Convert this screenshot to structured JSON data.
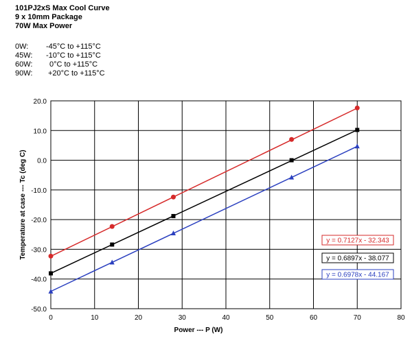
{
  "header": {
    "line1": "101PJ2xS Max Cool Curve",
    "line2": "9 x 10mm Package",
    "line3": "70W Max Power"
  },
  "ranges": [
    {
      "power": "0W:",
      "range": "-45°C to +115°C"
    },
    {
      "power": "45W:",
      "range": "-10°C to +115°C"
    },
    {
      "power": "60W:",
      "range": "0°C to +115°C"
    },
    {
      "power": "90W:",
      "range": "+20°C to +115°C"
    }
  ],
  "chart_data": {
    "type": "scatter",
    "xlabel": "Power --- P (W)",
    "ylabel": "Temperature at case --- Tc (deg C)",
    "xlim": [
      0,
      80
    ],
    "ylim": [
      -50,
      20
    ],
    "x_ticks": [
      "0",
      "10",
      "20",
      "30",
      "40",
      "50",
      "60",
      "70",
      "80"
    ],
    "y_ticks": [
      "20.0",
      "10.0",
      "0.0",
      "-10.0",
      "-20.0",
      "-30.0",
      "-40.0",
      "-50.0"
    ],
    "grid": true,
    "series": [
      {
        "color": "#d62a2a",
        "marker": "circle",
        "x": [
          0,
          14,
          28,
          55,
          70
        ],
        "y": [
          -32.3,
          -22.3,
          -12.4,
          7.0,
          17.6
        ],
        "trendline": {
          "slope": 0.7127,
          "intercept": -32.343,
          "label": "y = 0.7127x - 32.343"
        }
      },
      {
        "color": "#000000",
        "marker": "square",
        "x": [
          0,
          14,
          28,
          55,
          70
        ],
        "y": [
          -38.1,
          -28.4,
          -18.8,
          0.0,
          10.2
        ],
        "trendline": {
          "slope": 0.6897,
          "intercept": -38.077,
          "label": "y = 0.6897x - 38.077"
        }
      },
      {
        "color": "#2a3fbf",
        "marker": "triangle",
        "x": [
          0,
          14,
          28,
          55,
          70
        ],
        "y": [
          -44.2,
          -34.4,
          -24.6,
          -5.8,
          4.7
        ],
        "trendline": {
          "slope": 0.6978,
          "intercept": -44.167,
          "label": "y = 0.6978x - 44.167"
        }
      }
    ]
  }
}
